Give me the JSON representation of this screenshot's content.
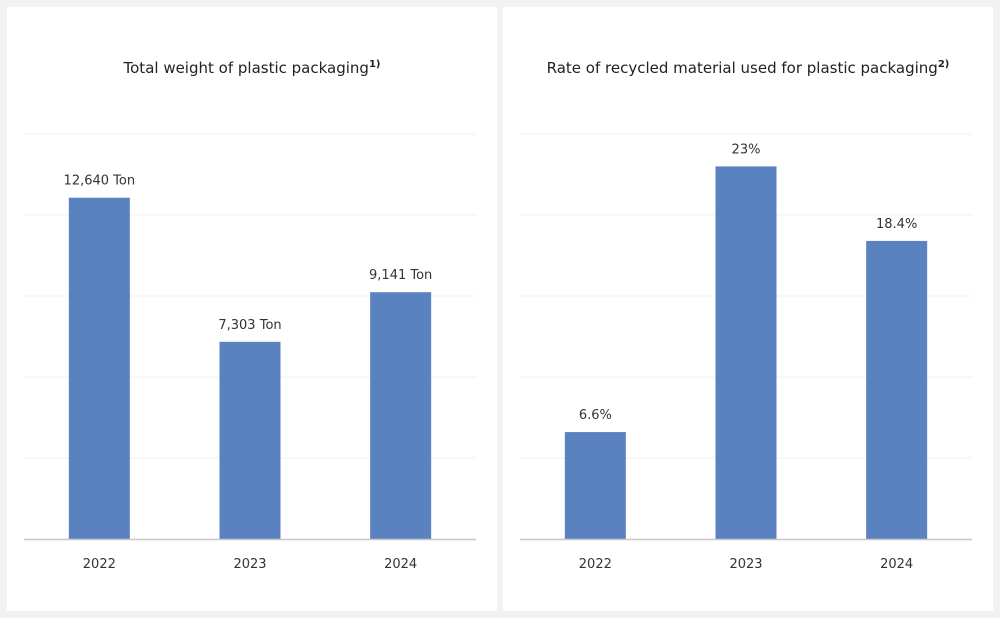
{
  "colors": {
    "bar": "#5b82c0",
    "grid": "#f0f0f0",
    "axis": "#c8c8c8",
    "text": "#333333"
  },
  "chart_data": [
    {
      "type": "bar",
      "title": "Total weight of plastic packaging",
      "title_note": "1)",
      "categories": [
        "2022",
        "2023",
        "2024"
      ],
      "values": [
        12640,
        7303,
        9141
      ],
      "data_labels": [
        "12,640 Ton",
        "7,303 Ton",
        "9,141 Ton"
      ],
      "xlabel": "",
      "ylabel": "",
      "ylim": [
        0,
        15000
      ],
      "grid": true,
      "grid_step": 3000
    },
    {
      "type": "bar",
      "title": "Rate of recycled material used for plastic packaging",
      "title_note": "2)",
      "categories": [
        "2022",
        "2023",
        "2024"
      ],
      "values": [
        6.6,
        23,
        18.4
      ],
      "data_labels": [
        "6.6%",
        "23%",
        "18.4%"
      ],
      "xlabel": "",
      "ylabel": "",
      "ylim": [
        0,
        25
      ],
      "grid": true,
      "grid_step": 5
    }
  ]
}
